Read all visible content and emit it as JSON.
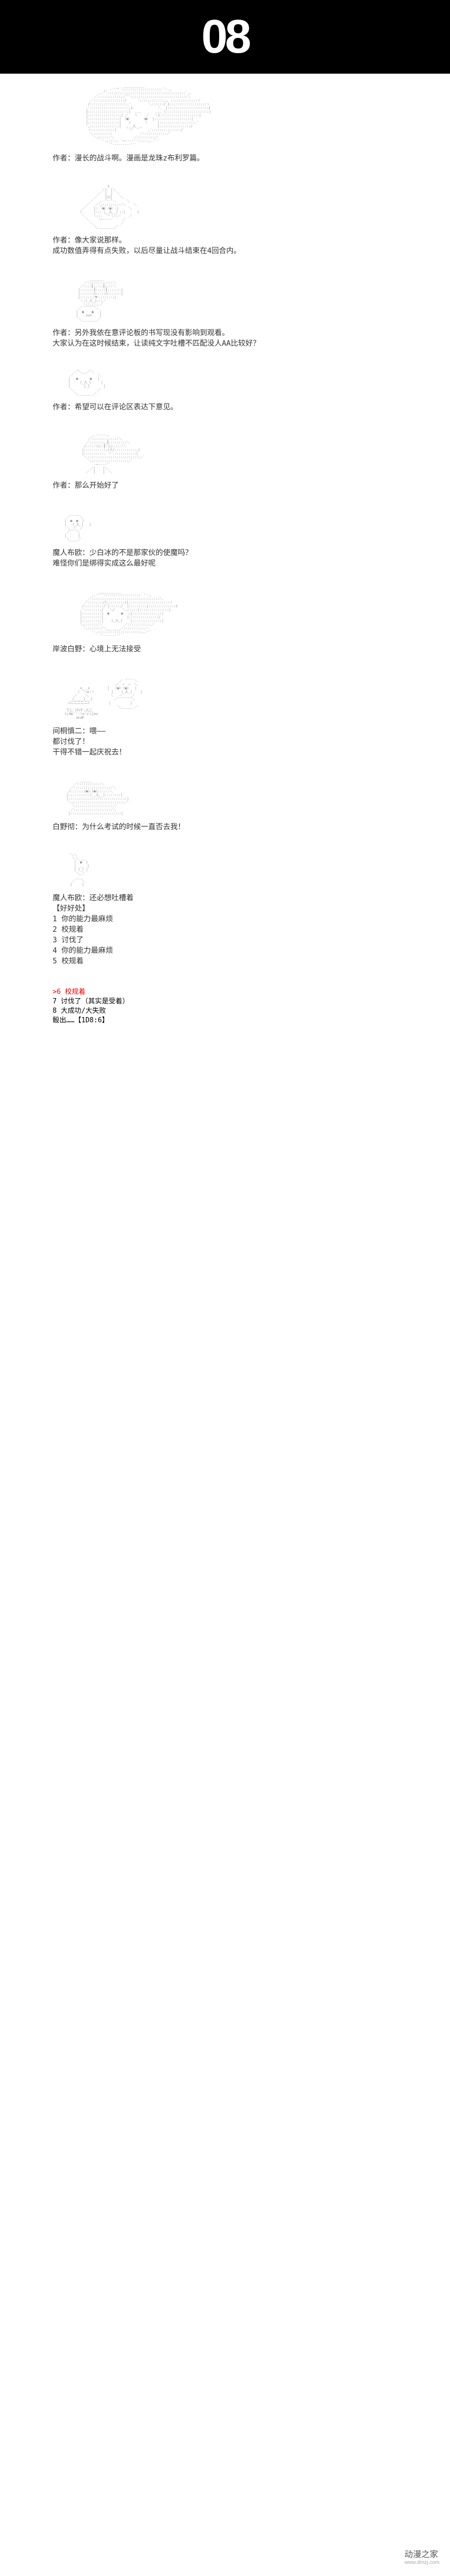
{
  "header": {
    "number": "08"
  },
  "panels": [
    {
      "art_key": "a1",
      "caption": "作者：漫长的战斗啊。漫画是龙珠z布利罗篇。"
    },
    {
      "art_key": "a2",
      "caption": "作者：像大家说那样。\n成功数值弄得有点失败，以后尽量让战斗结束在4回合内。"
    },
    {
      "art_key": "a3",
      "caption": "作者：另外我依在意评论板的书写现没有影响到观看。\n大家认为在这时候结束，让读纯文字吐槽不匹配没人AA比较好？"
    },
    {
      "art_key": "a4",
      "caption": "作者：希望可以在评论区表达下意见。"
    },
    {
      "art_key": "a5",
      "caption": "作者：那么开始好了"
    },
    {
      "art_key": "a6",
      "caption": "魔人布欧：少白冰的不是那家伙的使魔吗？\n难怪你们是绑得实成这么最好呢"
    },
    {
      "art_key": "a7",
      "caption": "岸波白野：心境上无法接受"
    },
    {
      "art_key": "a8",
      "caption": "间桐慎二：喂——\n都讨伐了！\n干得不错一起庆祝去！"
    },
    {
      "art_key": "a9",
      "caption": "白野彻：为什么考试的时候一直否去我！"
    },
    {
      "art_key": "a10",
      "caption": "魔人布欧：还必想吐槽着\n【好好处】\n1 你的能力最麻烦\n2 校规着\n3 讨伐了\n4 你的能力最麻烦\n5 校规着"
    }
  ],
  "choices": {
    "highlighted": ">6 校规着",
    "rest": "7 讨伐了（其实是受着）\n8 大成功/大失败\n骰出……【1D8:6】"
  },
  "watermark": {
    "main": "动漫之家",
    "sub": "www.dmzj.com"
  },
  "ascii": {
    "a1": "                                    ___________\n                          ,. -‐''\"´:::::::::::::::::::::`'‐.、\n                       ,.‐'´::::::::::::::::::::::::::::::::::::::::`.、\n                     ／:::::::::::::／￣＼::::::::::::::::::::::::::::＼\n                   ／::::::::::::::::/      ＼::::::::::::,、::::::::::::::ヽ\n                  /:::::::::::::::::::,'         ＼::::::/ i:::::::::::::::::::ヽ\n                 ,'::::::::::::::::::::,i             ＼  |:::::::::::::::::::::i\n                 i:::::::::::::::::::::|  ＿＿       ＿＿ |::::::::::::::::::::::|\n                 |:::::::::::::::::/ ／   ヽ    ／   ＼i::::::::::::::::::::|\n                 |::::::::::::::::| （●）     （●） |:::::::::::::::::::|\n                 |::::::::::::::::|    /       ヽ     |::::::::::::::::::,'\n                 ',:::::::::::::::|   ､__人__,        |::::::::::::::::/\n                  ヽ::::::::::::|     ` ⌒´       ,':::::::::::::::/\n                   ＼::::::::ヽ              ／::::::::::::／\n                     ＼:::::::＼          ／:::::::::／\n                       ｀'‐.::::::｀ー---‐'´::::::,.‐'´\n                           ｀''‐-------‐''´",
    "a2": "                            ∧\n                         ／|  |＼\n                       ／  |  |  ＼\n                     ／    |川|    ＼\n                   ／   ,.-'‐‐'-.     ＼\n                 ／   ／::::::::::::＼    ＼\n               ／    |::（●）（●）:|     ＼\n              (      |:::（__人__）::|      )\n               ＼    ＼::: ｀⌒´:::／    ／\n                 ＼    `ー----‐´    ／\n                   ＼              ／\n                     ＼_________／",
    "a3": "                   _______\n                ／:::::::::::::＼\n              ／::::┃:::::┃::::＼\n             |:::::::┃:::::┃:::::::|\n             |:::::::◯:::::◯:::::::|\n             |::::::／▼＼:::::::|\n              ＼:(_人_):::／\n                ＼::::::／\n             ／￣￣￣￣＼\n            |  ●    ●   |\n            |    ▽▽▽    |\n             ＼________／",
    "a4": "           ／＼___／＼\n         ／            ＼\n        |   ●      ●   |\n        |     (_人_)     |\n        |       |_|       |\n         ＼            ／\n           ＼________／",
    "a5": "                    ,.-‐‐‐-.、\n                  ／::::::::::::::＼\n                 ／:::::::::┃:::::::::＼\n                /::::::◯::┃::◯::::::＼\n               |::::::::::::(人)::::::::::::|\n               |:::::::::::｀⌒´::::::::::::|\n                ＼:::::::::::::::::::::::::::／\n                  ＼:::::::::::::::::::／\n                    ｀ー‐‐‐‐'´\n                   ／|    |＼\n                 ／  |    |  ＼",
    "a6": "         _____\n       ／     ＼\n      (  ●  ●  )\n      |   (_人_)   |\n       ＼  ⌒  ／\n       ／￣￣＼\n      |      |\n       ＼____／",
    "a7": "                        ___________\n                    ,.‐''´:::::::::::::::::::｀'‐.、\n                  ／:::::::::::::::::::::::::::::::::::＼\n                ／::::::::/|:::::::::/|:::::::::::::::::::::ヽ\n               /::::::::::/ |::::::/  |:::::::::|::::::::::::::i\n              ,':::::::::/   ＼/    ＼::::::|:::::::::::::::|\n              |::::::::::|  ●      ●  ＼|:::::::::::::::|\n              |::::::::::|            |:::::::::::::::|\n              |::::::::::|    (_人_)    |:::::::::::::::|\n              ＼::::::::＼           ／::::::::::::／\n                ＼::::::::＼_______／:::::::::::／\n                  ｀'‐.:::::::::::::::::::::::,.‐'´\n                      ｀''‐-----‐''´",
    "a8": "                                     ____\n                                  ／      ＼\n                                ／  ─  ─  ＼\n              ∧___∧         |   (●) (●)   |\n            （ ´・ω・）        |    (_人_)    |\n           ／    ＼           ＼   ⌒´    ／\n          (_＿__)＿_)           ／￣￣￣￣＼\n        ⊂ニニニニニ⊃          |          |\n                                 ＼_______／\n       てしﾞﾚTﾚT＼人ﾆﾆ\n      (いWﾚ´'-'ﾚv'v'ﾚ[ez\n            wﾚv#",
    "a9": "              ______\n           ／::::::::::::＼\n         ／::::::::::::::::::::＼\n        /:::::::(●):(●)::::::＼\n       |:::::::::::(__人__)::::::::|\n       |:::::::::::::::⌒::::::::::::::|\n        ＼:::::::::::::::::::::::::::／\n          ＼:::::::::::::::::::／\n         ／::::::::::::::::::::＼\n        |::::::::::::::::::::::::::|",
    "a10": "         ＼＼\n          ＼＼___\n           (  ●  )\n           |  ＿  |\n           | (_) |\n            ＼_／\n            ___\n          ／   ＼\n         |     |"
  }
}
